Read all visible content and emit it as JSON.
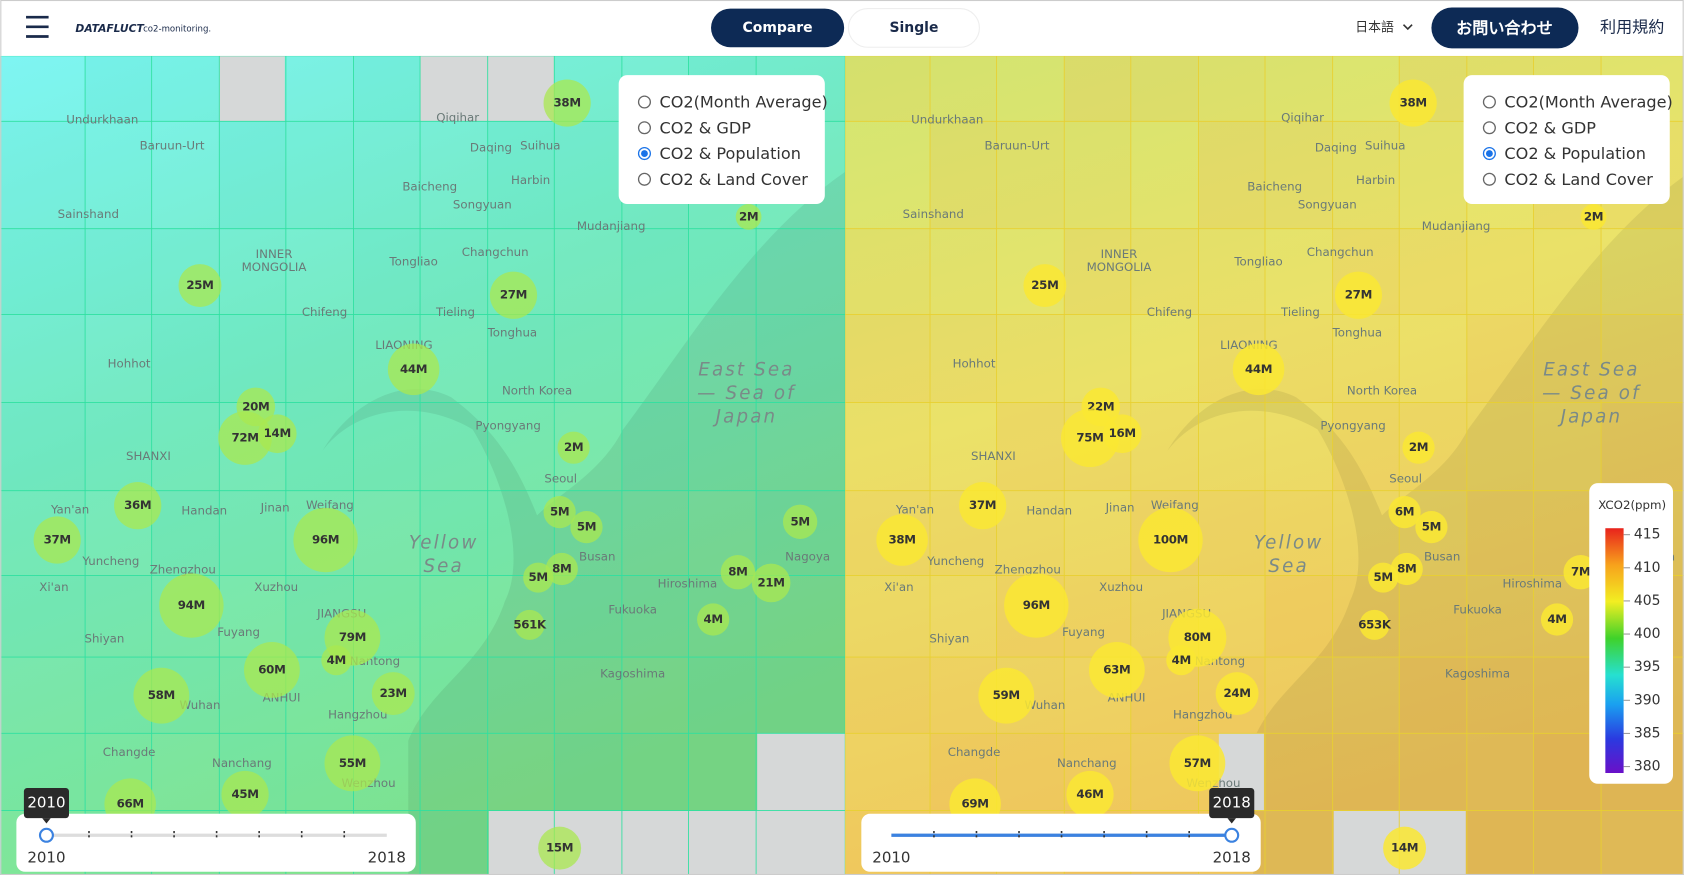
{
  "header": {
    "logo": "DATAFLUCT",
    "logo_sub": "co2-monitoring.",
    "tabs": [
      "Compare",
      "Single"
    ],
    "language": "日本語",
    "contact": "お問い合わせ",
    "terms": "利用規約"
  },
  "options": [
    "CO2(Month Average)",
    "CO2 & GDP",
    "CO2 & Population",
    "CO2 & Land Cover"
  ],
  "selected_option": 2,
  "map_labels": [
    "Undurkhaan",
    "Baruun-Urt",
    "Qiqihar",
    "Daqing",
    "Suihua",
    "Harbin",
    "Baicheng",
    "Songyuan",
    "Mudanjiang",
    "Sainshand",
    "INNER",
    "MONGOLIA",
    "Tongliao",
    "Changchun",
    "Chifeng",
    "Tieling",
    "Tonghua",
    "LIAONING",
    "Hohhot",
    "North Korea",
    "Pyongyang",
    "SHANXI",
    "Seoul",
    "Yan'an",
    "Handan",
    "Jinan",
    "Weifang",
    "Yuncheng",
    "Zhengzhou",
    "Xi'an",
    "Xuzhou",
    "Busan",
    "Hiroshima",
    "Nagoya",
    "Fukuoka",
    "Shiyan",
    "Fuyang",
    "JIANGSU",
    "Nantong",
    "Kagoshima",
    "ANHUI",
    "Wuhan",
    "Hangzhou",
    "Changde",
    "Nanchang",
    "Wenzhou",
    "East Sea",
    "— Sea of",
    "Japan",
    "Yellow",
    "Sea"
  ],
  "panels": [
    {
      "year": "2010",
      "slider_min": "2010",
      "slider_max": "2018",
      "bubbles": [
        "38M",
        "2M",
        "25M",
        "27M",
        "44M",
        "20M",
        "72M",
        "14M",
        "2M",
        "36M",
        "5M",
        "5M",
        "96M",
        "37M",
        "5M",
        "8M",
        "5M",
        "8M",
        "21M",
        "94M",
        "79M",
        "4M",
        "561K",
        "4M",
        "60M",
        "58M",
        "23M",
        "55M",
        "45M",
        "66M",
        "15M"
      ]
    },
    {
      "year": "2018",
      "slider_min": "2010",
      "slider_max": "2018",
      "bubbles": [
        "38M",
        "2M",
        "25M",
        "27M",
        "44M",
        "22M",
        "75M",
        "16M",
        "2M",
        "37M",
        "6M",
        "5M",
        "100M",
        "38M",
        "8M",
        "5M",
        "7M",
        "96M",
        "80M",
        "4M",
        "653K",
        "4M",
        "63M",
        "59M",
        "24M",
        "57M",
        "46M",
        "69M",
        "14M"
      ]
    }
  ],
  "legend": {
    "title": "XCO2(ppm)",
    "ticks": [
      415,
      410,
      405,
      400,
      395,
      390,
      385,
      380
    ]
  }
}
